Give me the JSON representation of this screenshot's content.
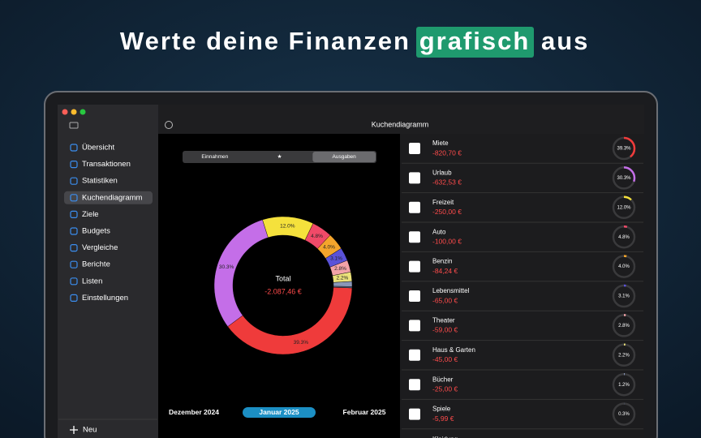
{
  "headline": {
    "before": "Werte deine Finanzen",
    "highlight": "grafisch",
    "after": "aus"
  },
  "sidebar": {
    "items": [
      "Übersicht",
      "Transaktionen",
      "Statistiken",
      "Kuchendiagramm",
      "Ziele",
      "Budgets",
      "Vergleiche",
      "Berichte",
      "Listen",
      "Einstellungen"
    ],
    "selected": 3,
    "new_button": "Neu"
  },
  "toolbar": {
    "title": "Kuchendiagramm"
  },
  "segmented": {
    "options": [
      "Einnahmen",
      "★",
      "Ausgaben"
    ],
    "selected": 2
  },
  "chart_data": {
    "type": "pie",
    "donut": true,
    "categories": [
      "Miete",
      "Urlaub",
      "Freizeit",
      "Auto",
      "Benzin",
      "Lebensmittel",
      "Theater",
      "Haus & Garten",
      "Bücher",
      "Spiele"
    ],
    "values": [
      39.3,
      30.3,
      12.0,
      4.8,
      4.0,
      3.1,
      2.8,
      2.2,
      1.2,
      0.3
    ],
    "value_labels": [
      "39.3%",
      "30.3%",
      "12.0%",
      "4.8%",
      "4.0%",
      "3.1%",
      "2.8%",
      "2.2%",
      "1.2%",
      "0.3%"
    ],
    "colors": [
      "#ef3b3b",
      "#c46ee8",
      "#f5e13c",
      "#f04a68",
      "#f4a52c",
      "#5a52d8",
      "#f3a3a8",
      "#ece27a",
      "#8a97b8",
      "#5f6f8f"
    ],
    "center_label": "Total",
    "center_value": "-2.087,46 €"
  },
  "expense_list": {
    "amounts": [
      "-820,70 €",
      "-632,53 €",
      "-250,00 €",
      "-100,00 €",
      "-84,24 €",
      "-65,00 €",
      "-59,00 €",
      "-45,00 €",
      "-25,00 €",
      "-5,99 €"
    ],
    "next_item": "Kleidung"
  },
  "months": {
    "items": [
      "Dezember 2024",
      "Januar 2025",
      "Februar 2025"
    ],
    "selected": 1
  }
}
